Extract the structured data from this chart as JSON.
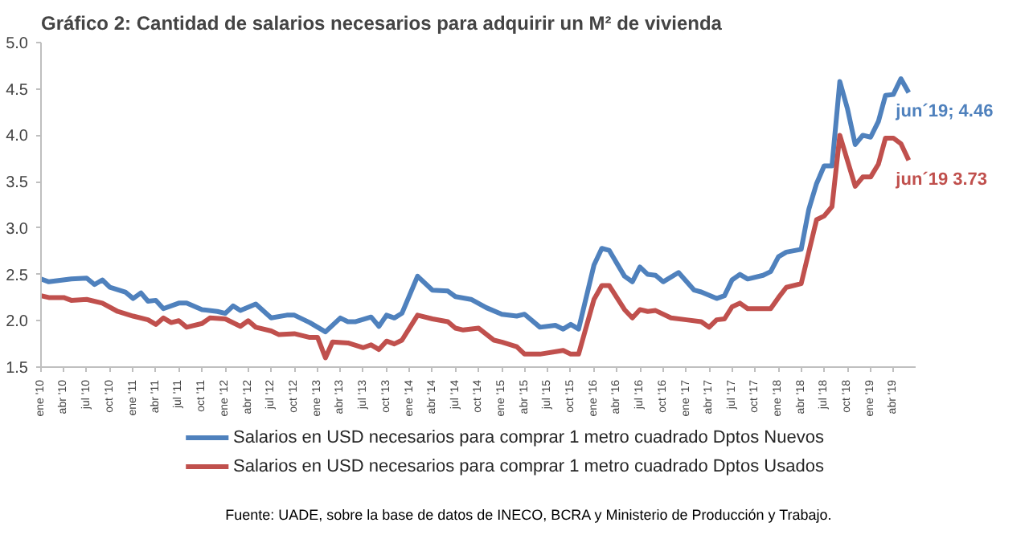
{
  "chart_data": {
    "type": "line",
    "title": "Gráfico 2: Cantidad de salarios necesarios para adquirir un M² de vivienda",
    "series": [
      {
        "name": "Salarios en USD necesarios para comprar 1 metro cuadrado Dptos Nuevos",
        "color": "#4f81bd",
        "x": [
          "2010-01",
          "2010-02",
          "2010-05",
          "2010-07",
          "2010-08",
          "2010-09",
          "2010-10",
          "2010-12",
          "2011-01",
          "2011-02",
          "2011-03",
          "2011-04",
          "2011-05",
          "2011-07",
          "2011-08",
          "2011-10",
          "2011-12",
          "2012-01",
          "2012-02",
          "2012-03",
          "2012-05",
          "2012-07",
          "2012-09",
          "2012-10",
          "2012-12",
          "2013-02",
          "2013-04",
          "2013-05",
          "2013-06",
          "2013-08",
          "2013-09",
          "2013-10",
          "2013-11",
          "2013-12",
          "2014-02",
          "2014-04",
          "2014-06",
          "2014-07",
          "2014-09",
          "2014-11",
          "2015-01",
          "2015-03",
          "2015-04",
          "2015-06",
          "2015-08",
          "2015-09",
          "2015-10",
          "2015-11",
          "2016-01",
          "2016-02",
          "2016-03",
          "2016-05",
          "2016-06",
          "2016-07",
          "2016-08",
          "2016-09",
          "2016-10",
          "2016-12",
          "2017-02",
          "2017-03",
          "2017-05",
          "2017-06",
          "2017-07",
          "2017-08",
          "2017-09",
          "2017-11",
          "2017-12",
          "2018-01",
          "2018-02",
          "2018-04",
          "2018-05",
          "2018-06",
          "2018-07",
          "2018-08",
          "2018-09",
          "2018-10",
          "2018-11",
          "2018-12",
          "2019-01",
          "2019-02",
          "2019-03",
          "2019-04",
          "2019-05",
          "2019-06"
        ],
        "values": [
          2.45,
          2.42,
          2.45,
          2.46,
          2.39,
          2.44,
          2.36,
          2.31,
          2.24,
          2.3,
          2.21,
          2.22,
          2.13,
          2.19,
          2.19,
          2.12,
          2.1,
          2.08,
          2.16,
          2.11,
          2.18,
          2.03,
          2.06,
          2.06,
          1.98,
          1.88,
          2.03,
          1.99,
          1.99,
          2.04,
          1.94,
          2.06,
          2.03,
          2.08,
          2.48,
          2.33,
          2.32,
          2.26,
          2.23,
          2.14,
          2.07,
          2.05,
          2.07,
          1.93,
          1.95,
          1.91,
          1.96,
          1.91,
          2.6,
          2.78,
          2.76,
          2.48,
          2.42,
          2.58,
          2.5,
          2.49,
          2.42,
          2.52,
          2.33,
          2.31,
          2.24,
          2.27,
          2.44,
          2.5,
          2.45,
          2.49,
          2.53,
          2.69,
          2.74,
          2.77,
          3.2,
          3.48,
          3.67,
          3.67,
          4.58,
          4.29,
          3.9,
          4.0,
          3.98,
          4.15,
          4.43,
          4.44,
          4.61,
          4.46
        ]
      },
      {
        "name": "Salarios en USD necesarios para comprar 1 metro cuadrado Dptos Usados",
        "color": "#c0504d",
        "x": [
          "2010-01",
          "2010-02",
          "2010-04",
          "2010-05",
          "2010-07",
          "2010-09",
          "2010-11",
          "2011-01",
          "2011-03",
          "2011-04",
          "2011-05",
          "2011-06",
          "2011-07",
          "2011-08",
          "2011-10",
          "2011-11",
          "2012-01",
          "2012-03",
          "2012-04",
          "2012-05",
          "2012-07",
          "2012-08",
          "2012-10",
          "2012-12",
          "2013-01",
          "2013-02",
          "2013-03",
          "2013-05",
          "2013-07",
          "2013-08",
          "2013-09",
          "2013-10",
          "2013-11",
          "2013-12",
          "2014-02",
          "2014-04",
          "2014-06",
          "2014-07",
          "2014-08",
          "2014-10",
          "2014-12",
          "2015-01",
          "2015-03",
          "2015-04",
          "2015-06",
          "2015-09",
          "2015-10",
          "2015-11",
          "2016-01",
          "2016-02",
          "2016-03",
          "2016-05",
          "2016-06",
          "2016-07",
          "2016-08",
          "2016-09",
          "2016-11",
          "2017-01",
          "2017-03",
          "2017-04",
          "2017-05",
          "2017-06",
          "2017-07",
          "2017-08",
          "2017-09",
          "2017-12",
          "2018-01",
          "2018-02",
          "2018-04",
          "2018-06",
          "2018-07",
          "2018-08",
          "2018-09",
          "2018-10",
          "2018-11",
          "2018-12",
          "2019-01",
          "2019-02",
          "2019-03",
          "2019-04",
          "2019-05",
          "2019-06"
        ],
        "values": [
          2.27,
          2.25,
          2.25,
          2.22,
          2.23,
          2.19,
          2.1,
          2.05,
          2.01,
          1.96,
          2.03,
          1.98,
          2.0,
          1.93,
          1.97,
          2.03,
          2.02,
          1.94,
          2.0,
          1.93,
          1.89,
          1.85,
          1.86,
          1.82,
          1.82,
          1.6,
          1.77,
          1.76,
          1.71,
          1.74,
          1.69,
          1.78,
          1.75,
          1.79,
          2.06,
          2.02,
          1.99,
          1.92,
          1.9,
          1.92,
          1.79,
          1.77,
          1.72,
          1.64,
          1.64,
          1.68,
          1.64,
          1.64,
          2.23,
          2.38,
          2.38,
          2.12,
          2.03,
          2.12,
          2.1,
          2.11,
          2.03,
          2.01,
          1.99,
          1.93,
          2.01,
          2.02,
          2.15,
          2.19,
          2.13,
          2.13,
          2.25,
          2.36,
          2.4,
          3.09,
          3.13,
          3.23,
          4.0,
          3.73,
          3.45,
          3.55,
          3.55,
          3.69,
          3.97,
          3.97,
          3.91,
          3.73
        ]
      }
    ],
    "xlim": [
      "2010-01",
      "2019-07"
    ],
    "xticks": [
      {
        "value": "2010-01",
        "label": "ene '10"
      },
      {
        "value": "2010-04",
        "label": "abr '10"
      },
      {
        "value": "2010-07",
        "label": "jul '10"
      },
      {
        "value": "2010-10",
        "label": "oct '10"
      },
      {
        "value": "2011-01",
        "label": "ene '11"
      },
      {
        "value": "2011-04",
        "label": "abr '11"
      },
      {
        "value": "2011-07",
        "label": "jul '11"
      },
      {
        "value": "2011-10",
        "label": "oct '11"
      },
      {
        "value": "2012-01",
        "label": "ene '12"
      },
      {
        "value": "2012-04",
        "label": "abr '12"
      },
      {
        "value": "2012-07",
        "label": "jul '12"
      },
      {
        "value": "2012-10",
        "label": "oct '12"
      },
      {
        "value": "2013-01",
        "label": "ene '13"
      },
      {
        "value": "2013-04",
        "label": "abr '13"
      },
      {
        "value": "2013-07",
        "label": "jul '13"
      },
      {
        "value": "2013-10",
        "label": "oct '13"
      },
      {
        "value": "2014-01",
        "label": "ene '14"
      },
      {
        "value": "2014-04",
        "label": "abr '14"
      },
      {
        "value": "2014-07",
        "label": "jul '14"
      },
      {
        "value": "2014-10",
        "label": "oct '14"
      },
      {
        "value": "2015-01",
        "label": "ene '15"
      },
      {
        "value": "2015-04",
        "label": "abr '15"
      },
      {
        "value": "2015-07",
        "label": "jul '15"
      },
      {
        "value": "2015-10",
        "label": "oct '15"
      },
      {
        "value": "2016-01",
        "label": "ene '16"
      },
      {
        "value": "2016-04",
        "label": "abr '16"
      },
      {
        "value": "2016-07",
        "label": "jul '16"
      },
      {
        "value": "2016-10",
        "label": "oct '16"
      },
      {
        "value": "2017-01",
        "label": "ene '17"
      },
      {
        "value": "2017-04",
        "label": "abr '17"
      },
      {
        "value": "2017-07",
        "label": "jul '17"
      },
      {
        "value": "2017-10",
        "label": "oct '17"
      },
      {
        "value": "2018-01",
        "label": "ene '18"
      },
      {
        "value": "2018-04",
        "label": "abr '18"
      },
      {
        "value": "2018-07",
        "label": "jul '18"
      },
      {
        "value": "2018-10",
        "label": "oct '18"
      },
      {
        "value": "2019-01",
        "label": "ene '19"
      },
      {
        "value": "2019-04",
        "label": "abr '19"
      }
    ],
    "ylim": [
      1.5,
      5.0
    ],
    "yticks": [
      {
        "value": 1.5,
        "label": "1.5"
      },
      {
        "value": 2.0,
        "label": "2.0"
      },
      {
        "value": 2.5,
        "label": "2.5"
      },
      {
        "value": 3.0,
        "label": "3.0"
      },
      {
        "value": 3.5,
        "label": "3.5"
      },
      {
        "value": 4.0,
        "label": "4.0"
      },
      {
        "value": 4.5,
        "label": "4.5"
      },
      {
        "value": 5.0,
        "label": "5.0"
      }
    ],
    "grid": false,
    "legend": "bottom",
    "line_style": "solid",
    "marker": "none",
    "annotations": [
      {
        "text": "jun´19; 4.46",
        "x": "2019-06",
        "y": 4.46
      },
      {
        "text": "jun´19 3.73",
        "x": "2019-06",
        "y": 3.73
      },
      "Fuente: UADE, sobre la base de datos de INECO, BCRA y Ministerio de Producción y Trabajo."
    ]
  }
}
